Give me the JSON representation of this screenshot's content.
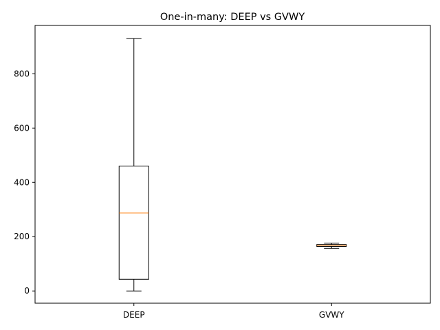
{
  "chart_data": {
    "type": "box",
    "title": "One-in-many: DEEP vs GVWY",
    "xlabel": "",
    "ylabel": "",
    "categories": [
      "DEEP",
      "GVWY"
    ],
    "boxes": [
      {
        "name": "DEEP",
        "whisker_low": 0,
        "q1": 43,
        "median": 287,
        "q3": 460,
        "whisker_high": 930
      },
      {
        "name": "GVWY",
        "whisker_low": 157,
        "q1": 164,
        "median": 168,
        "q3": 171,
        "whisker_high": 176
      }
    ],
    "ylim": [
      -45,
      978
    ],
    "yticks": [
      0,
      200,
      400,
      600,
      800
    ],
    "ytick_labels": [
      "0",
      "200",
      "400",
      "600",
      "800"
    ],
    "grid": false,
    "colors": {
      "box": "#000000",
      "median": "#ff7f0e",
      "axes": "#000000",
      "background": "#ffffff"
    }
  }
}
